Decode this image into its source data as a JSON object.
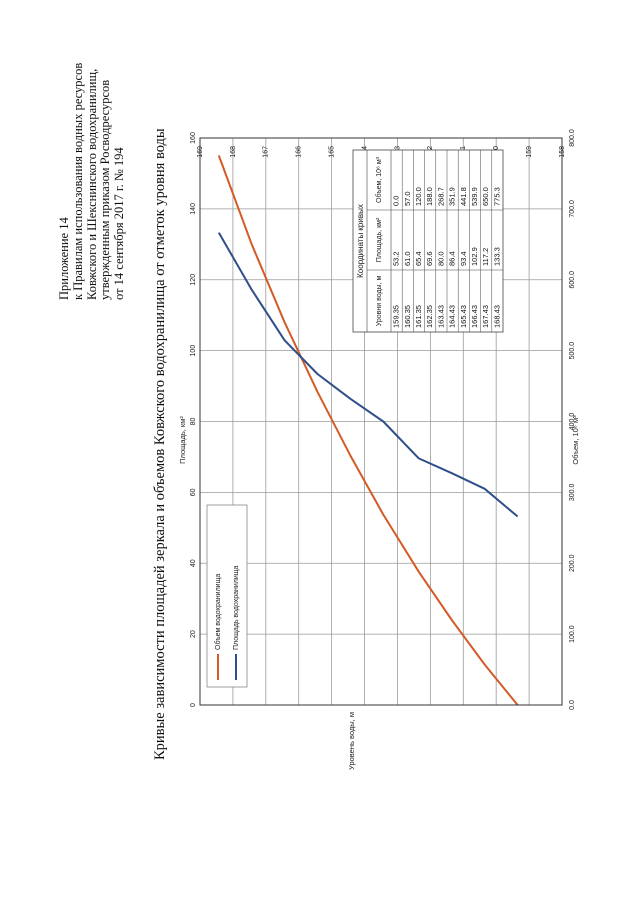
{
  "header": {
    "lines": [
      "Приложение 14",
      "к Правилам использования водных ресурсов",
      "Ковжского и Шекснинского водохранилищ,",
      "утвержденным приказом Росводресурсов",
      "от 14 сентября 2017 г. № 194"
    ]
  },
  "chart_data": {
    "type": "line",
    "title": "Кривые зависимости площадей зеркала и объемов Ковжского водохранилища от отметок уровня воды",
    "y_axis": {
      "label": "Уровень воды, м",
      "range": [
        158,
        169
      ],
      "ticks": [
        "158",
        "159",
        "160",
        "161",
        "162",
        "163",
        "164",
        "165",
        "166",
        "167",
        "168",
        "169"
      ]
    },
    "x_axis_area": {
      "label": "Площадь, км²",
      "range": [
        0,
        160
      ],
      "ticks": [
        "0",
        "20",
        "40",
        "60",
        "80",
        "100",
        "120",
        "140",
        "160"
      ]
    },
    "x_axis_volume": {
      "label": "Объем, 10⁶ м³",
      "range": [
        0,
        800
      ],
      "ticks": [
        "0.0",
        "100.0",
        "200.0",
        "300.0",
        "400.0",
        "500.0",
        "600.0",
        "700.0",
        "800.0"
      ]
    },
    "series": [
      {
        "name": "Объем водохранилища",
        "color": "#d45a26",
        "axis": "volume",
        "levels": [
          159.35,
          160.35,
          161.35,
          162.35,
          163.43,
          164.43,
          165.43,
          166.43,
          167.43,
          168.43
        ],
        "values": [
          0.0,
          57.0,
          120.0,
          188.0,
          268.7,
          351.9,
          441.8,
          539.9,
          650.0,
          775.3
        ]
      },
      {
        "name": "Площадь водохранилища",
        "color": "#2f4f8a",
        "axis": "area",
        "levels": [
          159.35,
          160.35,
          161.35,
          162.35,
          163.43,
          164.43,
          165.43,
          166.43,
          167.43,
          168.43
        ],
        "values": [
          53.2,
          61.0,
          65.4,
          69.6,
          80.0,
          86.4,
          93.4,
          102.9,
          117.2,
          133.3
        ]
      }
    ],
    "legend": "lower-left",
    "table": {
      "title": "Координаты кривых",
      "headers": [
        "Уровни воды, м",
        "Площадь, км²",
        "Объем, 10⁶ м³"
      ],
      "rows": [
        [
          "159.35",
          "53.2",
          "0.0"
        ],
        [
          "160.35",
          "61.0",
          "57.0"
        ],
        [
          "161.35",
          "65.4",
          "120.0"
        ],
        [
          "162.35",
          "69.6",
          "188.0"
        ],
        [
          "163.43",
          "80.0",
          "268.7"
        ],
        [
          "164.43",
          "86.4",
          "351.9"
        ],
        [
          "165.43",
          "93.4",
          "441.8"
        ],
        [
          "166.43",
          "102.9",
          "539.9"
        ],
        [
          "167.43",
          "117.2",
          "650.0"
        ],
        [
          "168.43",
          "133.3",
          "775.3"
        ]
      ]
    }
  }
}
